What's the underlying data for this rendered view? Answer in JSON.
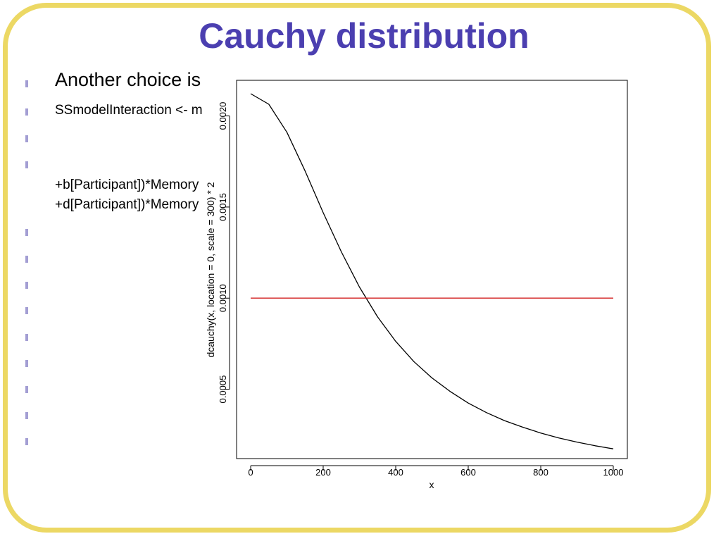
{
  "slide": {
    "title": "Cauchy distribution",
    "bullet_lines": [
      "Another choice is",
      "SSmodelInteraction <- m",
      "+b[Participant])*Memory",
      "+d[Participant])*Memory"
    ],
    "frame_color": "#ecd864",
    "title_color": "#4b3fb0"
  },
  "chart_data": {
    "type": "line",
    "xlabel": "x",
    "ylabel": "dcauchy(x, location = 0, scale = 300) * 2",
    "xlim": [
      0,
      1000
    ],
    "ylim": [
      0.000193,
      0.002122
    ],
    "x_ticks": [
      0,
      200,
      400,
      600,
      800,
      1000
    ],
    "x_tick_labels": [
      "0",
      "200",
      "400",
      "600",
      "800",
      "1000"
    ],
    "y_ticks": [
      0.0005,
      0.001,
      0.0015,
      0.002
    ],
    "y_tick_labels": [
      "0.0005",
      "0.0010",
      "0.0015",
      "0.0020"
    ],
    "grid": false,
    "series": [
      {
        "color": "#000000",
        "x": [
          0,
          50,
          100,
          150,
          200,
          250,
          300,
          350,
          400,
          450,
          500,
          550,
          600,
          650,
          700,
          750,
          800,
          850,
          900,
          950,
          1000
        ],
        "y": [
          0.002122,
          0.002064,
          0.00191,
          0.001698,
          0.001469,
          0.001254,
          0.001061,
          0.000897,
          0.000763,
          0.000652,
          0.000562,
          0.000488,
          0.000424,
          0.000372,
          0.000328,
          0.000292,
          0.00026,
          0.000233,
          0.00021,
          0.00019,
          0.000173
        ]
      },
      {
        "color": "#d22020",
        "x": [
          0,
          1000
        ],
        "y": [
          0.001,
          0.001
        ]
      }
    ]
  }
}
